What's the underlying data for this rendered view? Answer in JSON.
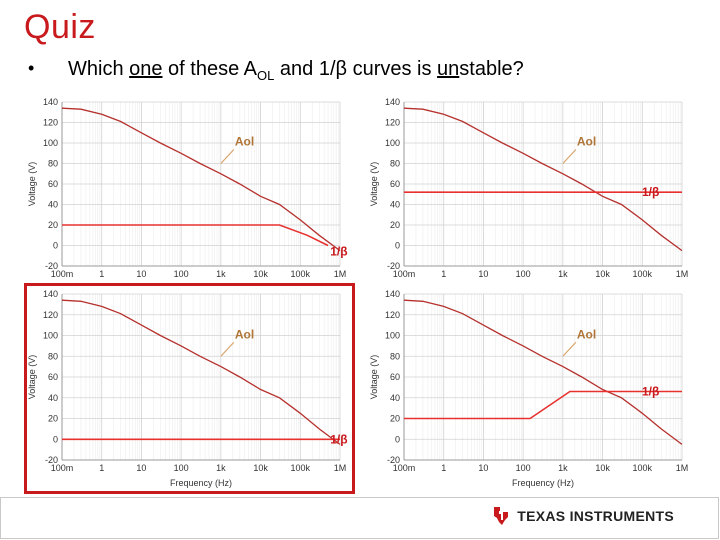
{
  "slide": {
    "title": "Quiz",
    "title_color": "#c8191c",
    "bullet": "•",
    "question": {
      "part1": "Which ",
      "part2": "one",
      "part3": " of these A",
      "part4": "OL",
      "part5": " and 1/β curves is ",
      "part6": "un",
      "part7": "stable?"
    },
    "answer_highlight": "bottom-left",
    "footer": {
      "logo_text": "TEXAS INSTRUMENTS",
      "logo_icon": "texas-state-icon",
      "logo_color": "#c8191c"
    }
  },
  "chart_data": [
    {
      "type": "line",
      "position": "top-left",
      "xscale": "log",
      "xlabel": "",
      "ylabel": "Voltage (V)",
      "xlim": [
        0.1,
        1000000
      ],
      "ylim": [
        -20,
        140
      ],
      "xticks": [
        "100m",
        "1",
        "10",
        "100",
        "1k",
        "10k",
        "100k",
        "1M"
      ],
      "yticks": [
        "140",
        "120",
        "100",
        "80",
        "60",
        "40",
        "20",
        "0",
        "-20"
      ],
      "grid": true,
      "series": [
        {
          "name": "Aol",
          "color": "#b5302d",
          "x": [
            0.1,
            0.3,
            1,
            3,
            10,
            30,
            100,
            300,
            1000,
            3000,
            10000,
            30000,
            100000,
            300000,
            1000000
          ],
          "y": [
            134,
            133,
            128,
            121,
            110,
            100,
            90,
            80,
            70,
            60,
            48,
            40,
            25,
            10,
            -5
          ]
        },
        {
          "name": "1/β",
          "color": "#e8312f",
          "x": [
            0.1,
            30000,
            150000,
            500000
          ],
          "y": [
            20,
            20,
            10,
            0
          ]
        }
      ],
      "annotations": [
        {
          "text": "Aol",
          "target_x": 1000,
          "target_y": 80
        },
        {
          "text": "1/β",
          "target_x": 400000,
          "target_y": 2
        }
      ]
    },
    {
      "type": "line",
      "position": "top-right",
      "xscale": "log",
      "xlabel": "",
      "ylabel": "Voltage (V)",
      "xlim": [
        0.1,
        1000000
      ],
      "ylim": [
        -20,
        140
      ],
      "xticks": [
        "100m",
        "1",
        "10",
        "100",
        "1k",
        "10k",
        "100k",
        "1M"
      ],
      "yticks": [
        "140",
        "120",
        "100",
        "80",
        "60",
        "40",
        "20",
        "0",
        "-20"
      ],
      "grid": true,
      "series": [
        {
          "name": "Aol",
          "color": "#b5302d",
          "x": [
            0.1,
            0.3,
            1,
            3,
            10,
            30,
            100,
            300,
            1000,
            3000,
            10000,
            30000,
            100000,
            300000,
            1000000
          ],
          "y": [
            134,
            133,
            128,
            121,
            110,
            100,
            90,
            80,
            70,
            60,
            48,
            40,
            25,
            10,
            -5
          ]
        },
        {
          "name": "1/β",
          "color": "#e8312f",
          "x": [
            0.1,
            1000000
          ],
          "y": [
            52,
            52
          ]
        }
      ],
      "annotations": [
        {
          "text": "Aol",
          "target_x": 1000,
          "target_y": 80
        },
        {
          "text": "1/β",
          "target_x": 400000,
          "target_y": 52
        }
      ]
    },
    {
      "type": "line",
      "position": "bottom-left",
      "xscale": "log",
      "xlabel": "Frequency (Hz)",
      "ylabel": "Voltage (V)",
      "xlim": [
        0.1,
        1000000
      ],
      "ylim": [
        -20,
        140
      ],
      "xticks": [
        "100m",
        "1",
        "10",
        "100",
        "1k",
        "10k",
        "100k",
        "1M"
      ],
      "yticks": [
        "140",
        "120",
        "100",
        "80",
        "60",
        "40",
        "20",
        "0",
        "-20"
      ],
      "grid": true,
      "series": [
        {
          "name": "Aol",
          "color": "#b5302d",
          "x": [
            0.1,
            0.3,
            1,
            3,
            10,
            30,
            100,
            300,
            1000,
            3000,
            10000,
            30000,
            100000,
            300000,
            1000000
          ],
          "y": [
            134,
            133,
            128,
            121,
            110,
            100,
            90,
            80,
            70,
            60,
            48,
            40,
            25,
            10,
            -5
          ]
        },
        {
          "name": "1/β",
          "color": "#e8312f",
          "x": [
            0.1,
            1000000
          ],
          "y": [
            0,
            0
          ]
        }
      ],
      "annotations": [
        {
          "text": "Aol",
          "target_x": 1000,
          "target_y": 80
        },
        {
          "text": "1/β",
          "target_x": 400000,
          "target_y": 0
        }
      ]
    },
    {
      "type": "line",
      "position": "bottom-right",
      "xscale": "log",
      "xlabel": "Frequency (Hz)",
      "ylabel": "Voltage (V)",
      "xlim": [
        0.1,
        1000000
      ],
      "ylim": [
        -20,
        140
      ],
      "xticks": [
        "100m",
        "1",
        "10",
        "100",
        "1k",
        "10k",
        "100k",
        "1M"
      ],
      "yticks": [
        "140",
        "120",
        "100",
        "80",
        "60",
        "40",
        "20",
        "0",
        "-20"
      ],
      "grid": true,
      "series": [
        {
          "name": "Aol",
          "color": "#b5302d",
          "x": [
            0.1,
            0.3,
            1,
            3,
            10,
            30,
            100,
            300,
            1000,
            3000,
            10000,
            30000,
            100000,
            300000,
            1000000
          ],
          "y": [
            134,
            133,
            128,
            121,
            110,
            100,
            90,
            80,
            70,
            60,
            48,
            40,
            25,
            10,
            -5
          ]
        },
        {
          "name": "1/β",
          "color": "#e8312f",
          "x": [
            0.1,
            150,
            1500,
            1000000
          ],
          "y": [
            20,
            20,
            46,
            46
          ]
        }
      ],
      "annotations": [
        {
          "text": "Aol",
          "target_x": 1000,
          "target_y": 80
        },
        {
          "text": "1/β",
          "target_x": 400000,
          "target_y": 46
        }
      ]
    }
  ]
}
